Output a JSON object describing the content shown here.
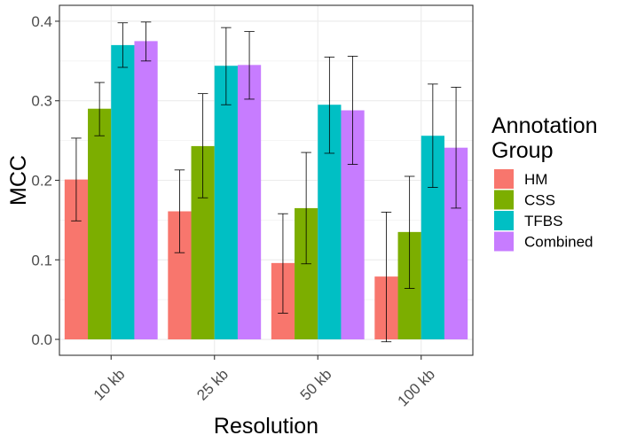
{
  "chart_data": {
    "type": "bar",
    "title": "",
    "xlabel": "Resolution",
    "ylabel": "MCC",
    "categories": [
      "10 kb",
      "25 kb",
      "50 kb",
      "100 kb"
    ],
    "ylim": [
      -0.02,
      0.42
    ],
    "yticks": [
      0.0,
      0.1,
      0.2,
      0.3,
      0.4
    ],
    "ytick_labels": [
      "0.0",
      "0.1",
      "0.2",
      "0.3",
      "0.4"
    ],
    "grid": true,
    "legend": {
      "title_lines": [
        "Annotation",
        "Group"
      ],
      "placement": "right"
    },
    "series": [
      {
        "name": "HM",
        "color": "#F8766D",
        "values": [
          0.201,
          0.161,
          0.096,
          0.079
        ],
        "err_low": [
          0.149,
          0.109,
          0.033,
          -0.003
        ],
        "err_high": [
          0.253,
          0.213,
          0.158,
          0.16
        ]
      },
      {
        "name": "CSS",
        "color": "#7CAE00",
        "values": [
          0.29,
          0.243,
          0.165,
          0.135
        ],
        "err_low": [
          0.256,
          0.178,
          0.095,
          0.064
        ],
        "err_high": [
          0.323,
          0.309,
          0.235,
          0.205
        ]
      },
      {
        "name": "TFBS",
        "color": "#00BFC4",
        "values": [
          0.37,
          0.344,
          0.295,
          0.256
        ],
        "err_low": [
          0.342,
          0.295,
          0.234,
          0.191
        ],
        "err_high": [
          0.398,
          0.392,
          0.355,
          0.321
        ]
      },
      {
        "name": "Combined",
        "color": "#C77CFF",
        "values": [
          0.375,
          0.345,
          0.288,
          0.241
        ],
        "err_low": [
          0.35,
          0.302,
          0.22,
          0.165
        ],
        "err_high": [
          0.399,
          0.387,
          0.356,
          0.317
        ]
      }
    ]
  }
}
